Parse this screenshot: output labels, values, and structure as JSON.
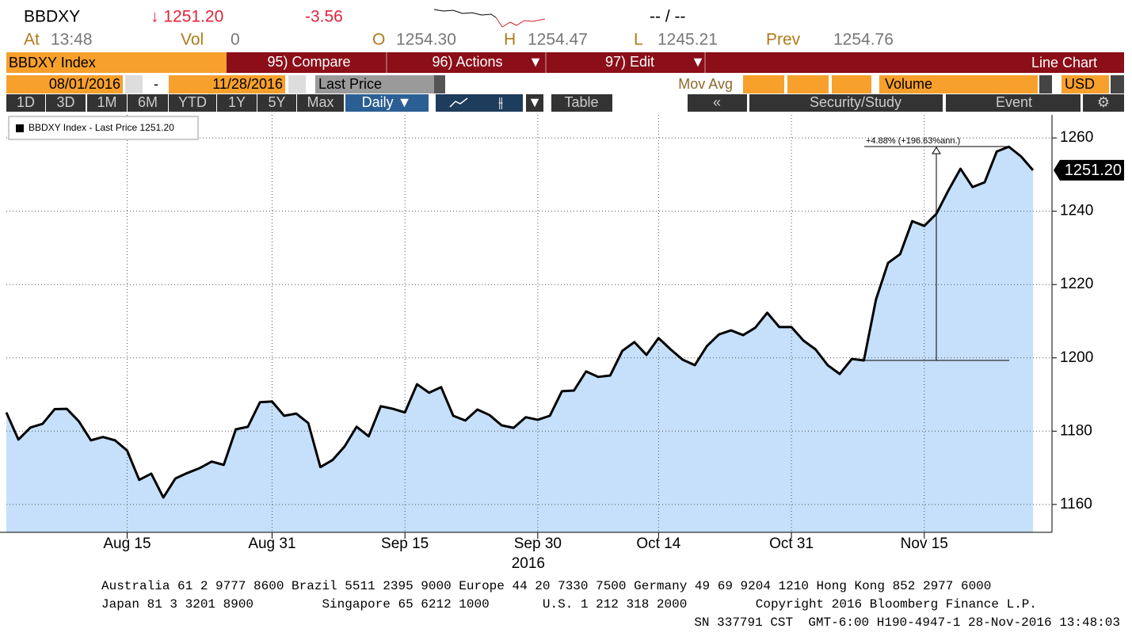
{
  "header": {
    "ticker": "BBDXY",
    "last": "↓ 1251.20",
    "change": "-3.56",
    "bid_ask": "-- / --",
    "at_label": "At",
    "time": "13:48",
    "vol_label": "Vol",
    "vol": "0",
    "open_label": "O",
    "open": "1254.30",
    "high_label": "H",
    "high": "1254.47",
    "low_label": "L",
    "low": "1245.21",
    "prev_label": "Prev",
    "prev": "1254.76"
  },
  "toolbar": {
    "security": "BBDXY Index",
    "menu": [
      "95) Compare",
      "96) Actions",
      "97) Edit"
    ],
    "view": "Line Chart",
    "start_date": "08/01/2016",
    "dash": "-",
    "end_date": "11/28/2016",
    "field": "Last Price",
    "mov_avg": "Mov Avg",
    "volume": "Volume",
    "currency": "USD",
    "periods": [
      "1D",
      "3D",
      "1M",
      "6M",
      "YTD",
      "1Y",
      "5Y",
      "Max"
    ],
    "frequency": "Daily ▼",
    "table": "Table",
    "back": "«",
    "security_study": "Security/Study",
    "event": "Event"
  },
  "chart_data": {
    "type": "line",
    "x": [
      "2016-08-01",
      "2016-08-02",
      "2016-08-03",
      "2016-08-04",
      "2016-08-05",
      "2016-08-08",
      "2016-08-09",
      "2016-08-10",
      "2016-08-11",
      "2016-08-12",
      "2016-08-15",
      "2016-08-16",
      "2016-08-17",
      "2016-08-18",
      "2016-08-19",
      "2016-08-22",
      "2016-08-23",
      "2016-08-24",
      "2016-08-25",
      "2016-08-26",
      "2016-08-29",
      "2016-08-30",
      "2016-08-31",
      "2016-09-01",
      "2016-09-02",
      "2016-09-05",
      "2016-09-06",
      "2016-09-07",
      "2016-09-08",
      "2016-09-09",
      "2016-09-12",
      "2016-09-13",
      "2016-09-14",
      "2016-09-15",
      "2016-09-16",
      "2016-09-19",
      "2016-09-20",
      "2016-09-21",
      "2016-09-22",
      "2016-09-23",
      "2016-09-26",
      "2016-09-27",
      "2016-09-28",
      "2016-09-29",
      "2016-09-30",
      "2016-10-03",
      "2016-10-04",
      "2016-10-05",
      "2016-10-06",
      "2016-10-07",
      "2016-10-10",
      "2016-10-11",
      "2016-10-12",
      "2016-10-13",
      "2016-10-14",
      "2016-10-17",
      "2016-10-18",
      "2016-10-19",
      "2016-10-20",
      "2016-10-21",
      "2016-10-24",
      "2016-10-25",
      "2016-10-26",
      "2016-10-27",
      "2016-10-28",
      "2016-10-31",
      "2016-11-01",
      "2016-11-02",
      "2016-11-03",
      "2016-11-04",
      "2016-11-07",
      "2016-11-08",
      "2016-11-09",
      "2016-11-10",
      "2016-11-11",
      "2016-11-14",
      "2016-11-15",
      "2016-11-16",
      "2016-11-17",
      "2016-11-18",
      "2016-11-21",
      "2016-11-22",
      "2016-11-23",
      "2016-11-24",
      "2016-11-25",
      "2016-11-28"
    ],
    "series": [
      {
        "name": "BBDXY Index - Last Price 1251.20",
        "color": "#000000",
        "fill": "#c6e0fb",
        "values": [
          1185.1,
          1177.7,
          1181.0,
          1182.0,
          1186.0,
          1186.1,
          1182.7,
          1177.5,
          1178.4,
          1177.5,
          1174.7,
          1166.7,
          1168.4,
          1161.9,
          1167.1,
          1168.6,
          1169.9,
          1171.7,
          1170.8,
          1180.5,
          1181.2,
          1187.9,
          1188.1,
          1184.2,
          1184.8,
          1182.2,
          1170.2,
          1172.1,
          1175.8,
          1181.2,
          1178.6,
          1186.8,
          1186.1,
          1185.1,
          1192.8,
          1190.5,
          1192.0,
          1184.2,
          1182.9,
          1185.9,
          1184.4,
          1181.6,
          1180.9,
          1183.8,
          1183.1,
          1184.2,
          1190.9,
          1191.1,
          1196.3,
          1194.8,
          1195.2,
          1201.9,
          1204.3,
          1200.8,
          1205.4,
          1202.3,
          1199.5,
          1198.0,
          1203.2,
          1206.4,
          1207.5,
          1206.2,
          1208.2,
          1212.3,
          1208.4,
          1208.4,
          1204.7,
          1202.3,
          1198.0,
          1195.6,
          1199.7,
          1199.3,
          1215.9,
          1225.9,
          1228.3,
          1237.3,
          1236.0,
          1239.3,
          1245.7,
          1251.6,
          1246.6,
          1247.9,
          1256.3,
          1257.6,
          1255.0,
          1251.2
        ]
      }
    ],
    "last_value_label": "1251.20",
    "annotation": "+4.88% (+196.63%ann.)",
    "xticks": [
      {
        "value": "2016-08-15",
        "label": "Aug 15"
      },
      {
        "value": "2016-08-31",
        "label": "Aug 31"
      },
      {
        "value": "2016-09-15",
        "label": "Sep 15"
      },
      {
        "value": "2016-09-30",
        "label": "Sep 30"
      },
      {
        "value": "2016-10-14",
        "label": "Oct 14"
      },
      {
        "value": "2016-10-31",
        "label": "Oct 31"
      },
      {
        "value": "2016-11-15",
        "label": "Nov 15"
      }
    ],
    "year_label": "2016",
    "ylim": [
      1152.4,
      1266.3
    ],
    "yticks": [
      1160,
      1180,
      1200,
      1220,
      1240,
      1260
    ],
    "grid": true
  },
  "footer": {
    "lines": [
      "Australia 61 2 9777 8600 Brazil 5511 2395 9000 Europe 44 20 7330 7500 Germany 49 69 9204 1210 Hong Kong 852 2977 6000",
      "Japan 81 3 3201 8900         Singapore 65 6212 1000       U.S. 1 212 318 2000         Copyright 2016 Bloomberg Finance L.P.",
      "SN 337791 CST  GMT-6:00 H190-4947-1 28-Nov-2016 13:48:03"
    ]
  }
}
